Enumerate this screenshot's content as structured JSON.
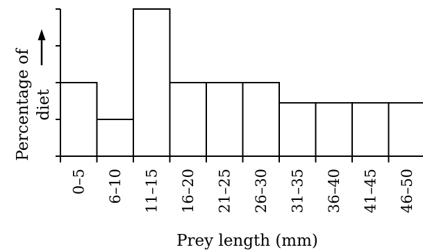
{
  "chart_data": {
    "type": "bar",
    "title": "",
    "xlabel": "Prey length (mm)",
    "ylabel_lines": [
      "Percentage of",
      "diet"
    ],
    "ylabel_arrow": "up-arrow",
    "categories": [
      "0–5",
      "6–10",
      "11–15",
      "16–20",
      "21–25",
      "26–30",
      "31–35",
      "36–40",
      "41–45",
      "46–50"
    ],
    "values": [
      2,
      1,
      4,
      2,
      2,
      2,
      1.45,
      1.45,
      1.45,
      1.45
    ],
    "ylim": [
      0,
      4
    ],
    "y_ticks": [
      0,
      1,
      2,
      3,
      4
    ],
    "y_tick_labels_shown": false,
    "bar_gap": 0,
    "grid": false,
    "legend": "none"
  }
}
